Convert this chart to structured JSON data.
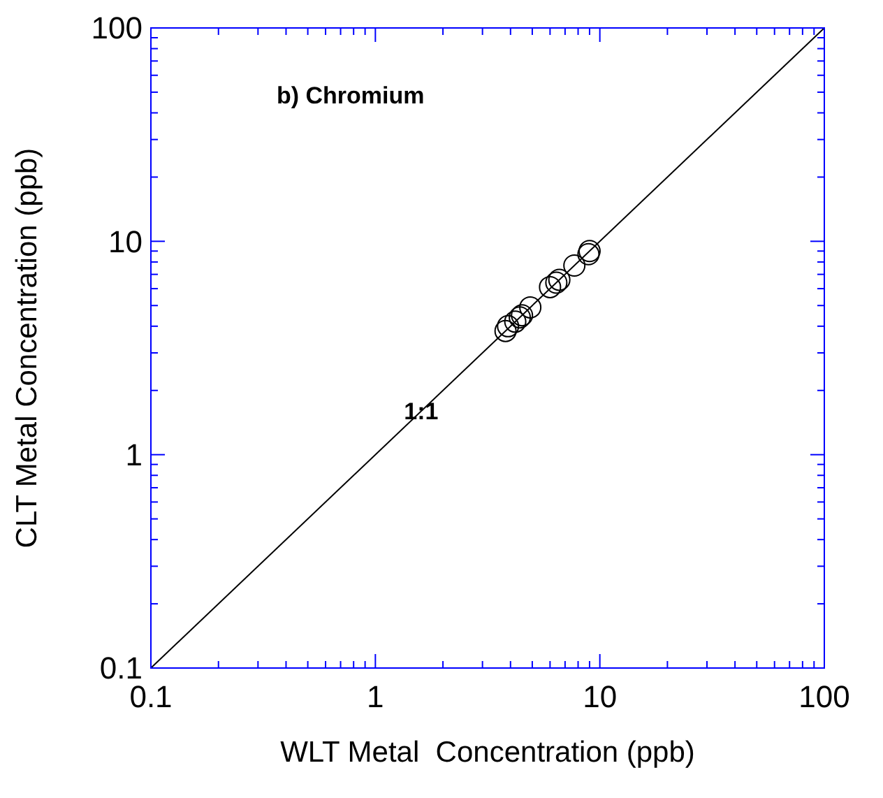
{
  "chart_data": {
    "type": "scatter",
    "xlabel": "WLT Metal  Concentration (ppb)",
    "ylabel": "CLT Metal Concentration (ppb)",
    "log": "xy",
    "xlim": [
      0.1,
      100
    ],
    "ylim": [
      0.1,
      100
    ],
    "xticks": [
      0.1,
      {
        "value": 0.2,
        "label": null
      },
      {
        "value": 0.3,
        "label": null
      },
      {
        "value": 0.4,
        "label": null
      },
      {
        "value": 0.5,
        "label": null
      },
      {
        "value": 0.6,
        "label": null
      },
      {
        "value": 0.7,
        "label": null
      },
      {
        "value": 0.8,
        "label": null
      },
      {
        "value": 0.9,
        "label": null
      },
      1,
      {
        "value": 2,
        "label": null
      },
      {
        "value": 3,
        "label": null
      },
      {
        "value": 4,
        "label": null
      },
      {
        "value": 5,
        "label": null
      },
      {
        "value": 6,
        "label": null
      },
      {
        "value": 7,
        "label": null
      },
      {
        "value": 8,
        "label": null
      },
      {
        "value": 9,
        "label": null
      },
      10,
      {
        "value": 20,
        "label": null
      },
      {
        "value": 30,
        "label": null
      },
      {
        "value": 40,
        "label": null
      },
      {
        "value": 50,
        "label": null
      },
      {
        "value": 60,
        "label": null
      },
      {
        "value": 70,
        "label": null
      },
      {
        "value": 80,
        "label": null
      },
      {
        "value": 90,
        "label": null
      },
      100
    ],
    "yticks": [
      0.1,
      {
        "value": 0.2,
        "label": null
      },
      {
        "value": 0.3,
        "label": null
      },
      {
        "value": 0.4,
        "label": null
      },
      {
        "value": 0.5,
        "label": null
      },
      {
        "value": 0.6,
        "label": null
      },
      {
        "value": 0.7,
        "label": null
      },
      {
        "value": 0.8,
        "label": null
      },
      {
        "value": 0.9,
        "label": null
      },
      1,
      {
        "value": 2,
        "label": null
      },
      {
        "value": 3,
        "label": null
      },
      {
        "value": 4,
        "label": null
      },
      {
        "value": 5,
        "label": null
      },
      {
        "value": 6,
        "label": null
      },
      {
        "value": 7,
        "label": null
      },
      {
        "value": 8,
        "label": null
      },
      {
        "value": 9,
        "label": null
      },
      10,
      {
        "value": 20,
        "label": null
      },
      {
        "value": 30,
        "label": null
      },
      {
        "value": 40,
        "label": null
      },
      {
        "value": 50,
        "label": null
      },
      {
        "value": 60,
        "label": null
      },
      {
        "value": 70,
        "label": null
      },
      {
        "value": 80,
        "label": null
      },
      {
        "value": 90,
        "label": null
      },
      100
    ],
    "marker": "circle",
    "grid": false,
    "series": [
      {
        "color": "#000000",
        "x": [
          3.8,
          3.9,
          4.2,
          4.4,
          4.5,
          4.9,
          6.0,
          6.4,
          6.6,
          7.7,
          8.9,
          9.0
        ],
        "values": [
          3.8,
          4.0,
          4.2,
          4.4,
          4.5,
          4.9,
          6.1,
          6.4,
          6.6,
          7.7,
          8.7,
          9.0
        ]
      },
      {
        "type": "line",
        "color": "#000000",
        "x": [
          0.1,
          100
        ],
        "values": [
          0.1,
          100
        ],
        "marker": "none",
        "line_style": "solid"
      }
    ],
    "annotations": [
      "b) Chromium",
      {
        "text": "1:1",
        "x": 1.6,
        "y": 1.6
      }
    ]
  }
}
